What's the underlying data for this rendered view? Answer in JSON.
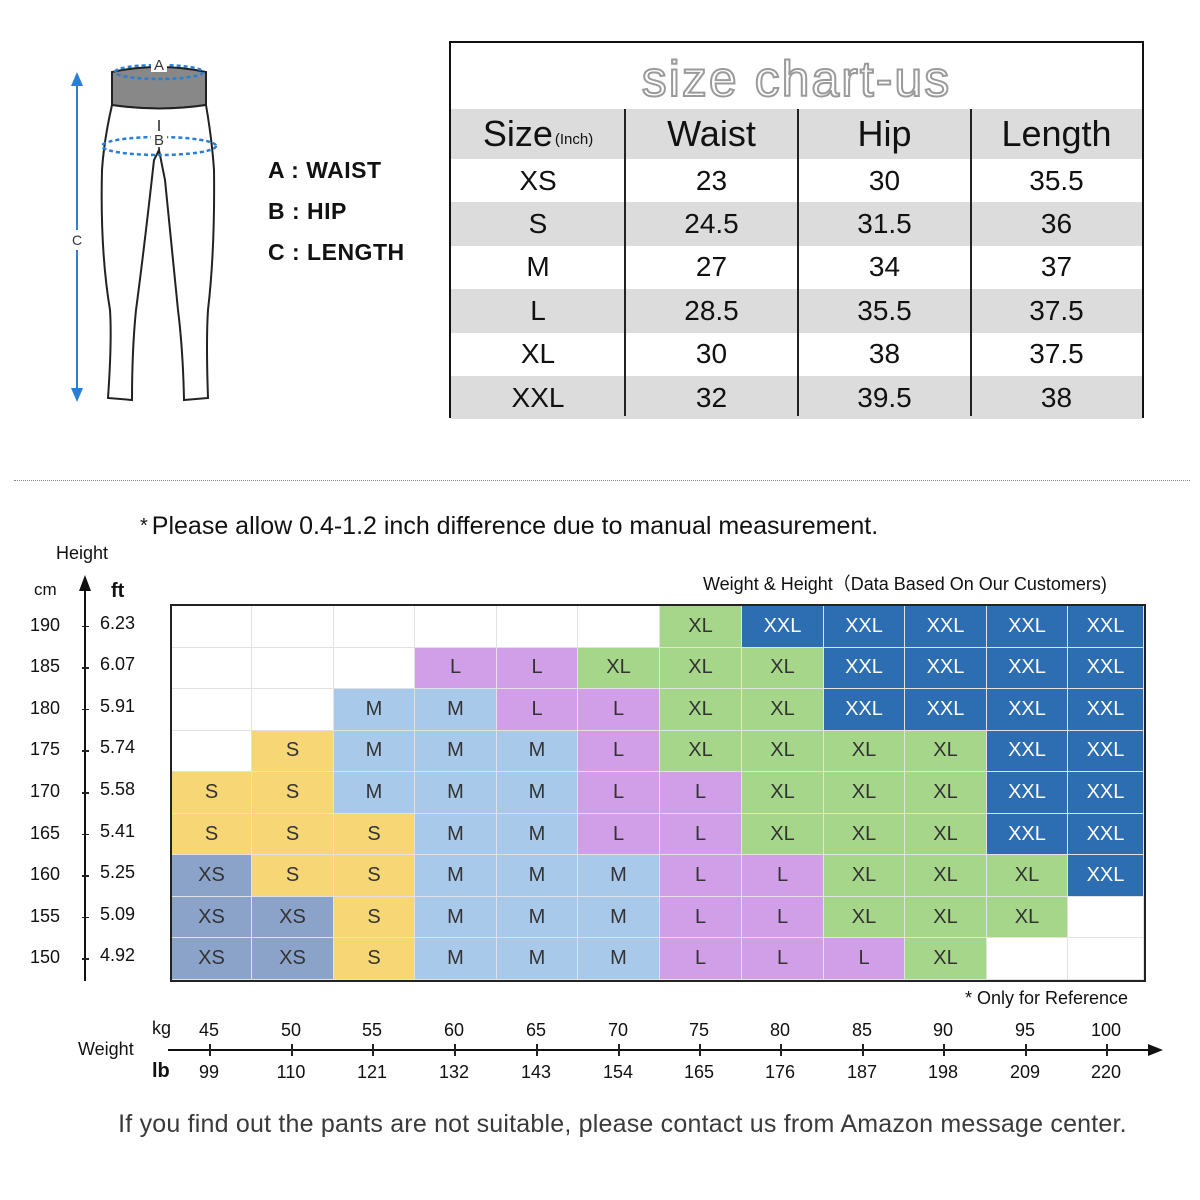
{
  "colors": {
    "XS": "#8ca3c9",
    "S": "#f6d675",
    "M": "#a8c9ea",
    "L": "#d19fe8",
    "XL": "#a5d689",
    "XXL": "#2d6db1",
    "empty": "#ffffff"
  },
  "diagram": {
    "label_a": "A",
    "label_b": "B",
    "label_c": "C"
  },
  "legend": {
    "a": "A : WAIST",
    "b": "B : HIP",
    "c": "C : LENGTH"
  },
  "size_table": {
    "title": "size chart-us",
    "headers": [
      "Size",
      "Waist",
      "Hip",
      "Length"
    ],
    "unit": "(Inch)",
    "rows": [
      [
        "XS",
        "23",
        "30",
        "35.5"
      ],
      [
        "S",
        "24.5",
        "31.5",
        "36"
      ],
      [
        "M",
        "27",
        "34",
        "37"
      ],
      [
        "L",
        "28.5",
        "35.5",
        "37.5"
      ],
      [
        "XL",
        "30",
        "38",
        "37.5"
      ],
      [
        "XXL",
        "32",
        "39.5",
        "38"
      ]
    ]
  },
  "note": "Please allow 0.4-1.2 inch difference due to manual measurement.",
  "note_marker": "*",
  "chart": {
    "height_label": "Height",
    "cm_label": "cm",
    "ft_label": "ft",
    "caption": "Weight & Height（Data Based On Our Customers)",
    "reference": "* Only for Reference",
    "weight_label": "Weight",
    "kg_label": "kg",
    "lb_label": "lb"
  },
  "chart_data": {
    "type": "table",
    "heights_cm": [
      "190",
      "185",
      "180",
      "175",
      "170",
      "165",
      "160",
      "155",
      "150"
    ],
    "heights_ft": [
      "6.23",
      "6.07",
      "5.91",
      "5.74",
      "5.58",
      "5.41",
      "5.25",
      "5.09",
      "4.92"
    ],
    "weights_kg": [
      "45",
      "50",
      "55",
      "60",
      "65",
      "70",
      "75",
      "80",
      "85",
      "90",
      "95",
      "100"
    ],
    "weights_lb": [
      "99",
      "110",
      "121",
      "132",
      "143",
      "154",
      "165",
      "176",
      "187",
      "198",
      "209",
      "220"
    ],
    "grid": [
      [
        "",
        "",
        "",
        "",
        "",
        "",
        "XL",
        "XXL",
        "XXL",
        "XXL",
        "XXL",
        "XXL"
      ],
      [
        "",
        "",
        "",
        "L",
        "L",
        "XL",
        "XL",
        "XL",
        "XXL",
        "XXL",
        "XXL",
        "XXL"
      ],
      [
        "",
        "",
        "M",
        "M",
        "L",
        "L",
        "XL",
        "XL",
        "XXL",
        "XXL",
        "XXL",
        "XXL"
      ],
      [
        "",
        "S",
        "M",
        "M",
        "M",
        "L",
        "XL",
        "XL",
        "XL",
        "XL",
        "XXL",
        "XXL"
      ],
      [
        "S",
        "S",
        "M",
        "M",
        "M",
        "L",
        "L",
        "XL",
        "XL",
        "XL",
        "XXL",
        "XXL"
      ],
      [
        "S",
        "S",
        "S",
        "M",
        "M",
        "L",
        "L",
        "XL",
        "XL",
        "XL",
        "XXL",
        "XXL"
      ],
      [
        "XS",
        "S",
        "S",
        "M",
        "M",
        "M",
        "L",
        "L",
        "XL",
        "XL",
        "XL",
        "XXL"
      ],
      [
        "XS",
        "XS",
        "S",
        "M",
        "M",
        "M",
        "L",
        "L",
        "XL",
        "XL",
        "XL",
        ""
      ],
      [
        "XS",
        "XS",
        "S",
        "M",
        "M",
        "M",
        "L",
        "L",
        "L",
        "XL",
        "",
        ""
      ]
    ]
  },
  "footer": "If you find out the pants are not suitable, please contact us from Amazon message center."
}
